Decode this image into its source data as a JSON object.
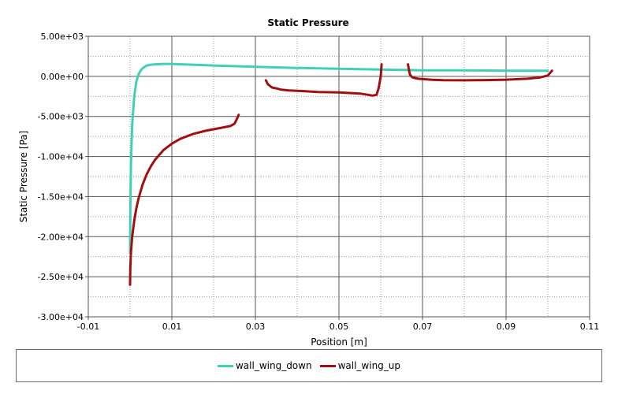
{
  "chart_data": {
    "type": "line",
    "title": "Static Pressure",
    "xlabel": "Position [m]",
    "ylabel": "Static Pressure [Pa]",
    "xlim": [
      -0.01,
      0.11
    ],
    "ylim": [
      -30000,
      5000
    ],
    "x_ticks": [
      -0.01,
      0.01,
      0.03,
      0.05,
      0.07,
      0.09,
      0.11
    ],
    "x_tick_labels": [
      "-0.01",
      "0.01",
      "0.03",
      "0.05",
      "0.07",
      "0.09",
      "0.11"
    ],
    "y_ticks": [
      5000,
      0,
      -5000,
      -10000,
      -15000,
      -20000,
      -25000,
      -30000
    ],
    "y_tick_labels": [
      "5.00e+03",
      "0.00e+00",
      "-5.00e+03",
      "-1.00e+04",
      "-1.50e+04",
      "-2.00e+04",
      "-2.50e+04",
      "-3.00e+04"
    ],
    "grid": true,
    "legend_position": "bottom",
    "series": [
      {
        "name": "wall_wing_down",
        "color": "#40d0b8",
        "segments": [
          {
            "x": [
              0.0,
              5e-05,
              0.0002,
              0.0005,
              0.001,
              0.0015,
              0.002,
              0.0025,
              0.003,
              0.0035,
              0.004,
              0.005,
              0.006,
              0.008,
              0.01,
              0.015,
              0.02,
              0.03,
              0.04,
              0.05,
              0.06,
              0.07,
              0.08,
              0.09,
              0.1
            ],
            "y": [
              -22000,
              -17000,
              -11000,
              -6000,
              -2500,
              -700,
              200,
              700,
              1000,
              1200,
              1350,
              1450,
              1500,
              1550,
              1550,
              1450,
              1350,
              1200,
              1050,
              950,
              850,
              750,
              750,
              700,
              700
            ]
          }
        ]
      },
      {
        "name": "wall_wing_up",
        "color": "#a01010",
        "segments": [
          {
            "x": [
              0.0,
              5e-05,
              0.0002,
              0.0005,
              0.001,
              0.0015,
              0.002,
              0.003,
              0.004,
              0.005,
              0.006,
              0.008,
              0.01,
              0.012,
              0.015,
              0.018,
              0.02,
              0.022,
              0.024,
              0.025,
              0.0255,
              0.026
            ],
            "y": [
              -26000,
              -24000,
              -22000,
              -20000,
              -18000,
              -16500,
              -15300,
              -13500,
              -12200,
              -11200,
              -10400,
              -9200,
              -8400,
              -7800,
              -7200,
              -6800,
              -6600,
              -6400,
              -6200,
              -5900,
              -5400,
              -4800
            ]
          },
          {
            "x": [
              0.0325,
              0.033,
              0.034,
              0.035,
              0.036,
              0.038,
              0.04,
              0.045,
              0.05,
              0.055,
              0.057,
              0.058,
              0.059,
              0.0595,
              0.06,
              0.0602
            ],
            "y": [
              -500,
              -1000,
              -1400,
              -1500,
              -1650,
              -1750,
              -1800,
              -1950,
              -2000,
              -2150,
              -2300,
              -2400,
              -2300,
              -1500,
              0,
              1500
            ]
          },
          {
            "x": [
              0.0665,
              0.0668,
              0.067,
              0.0675,
              0.068,
              0.069,
              0.07,
              0.072,
              0.075,
              0.08,
              0.085,
              0.09,
              0.095,
              0.098,
              0.1,
              0.101
            ],
            "y": [
              1500,
              700,
              200,
              -100,
              -200,
              -300,
              -350,
              -420,
              -480,
              -500,
              -470,
              -420,
              -300,
              -150,
              100,
              700
            ]
          }
        ]
      }
    ]
  }
}
